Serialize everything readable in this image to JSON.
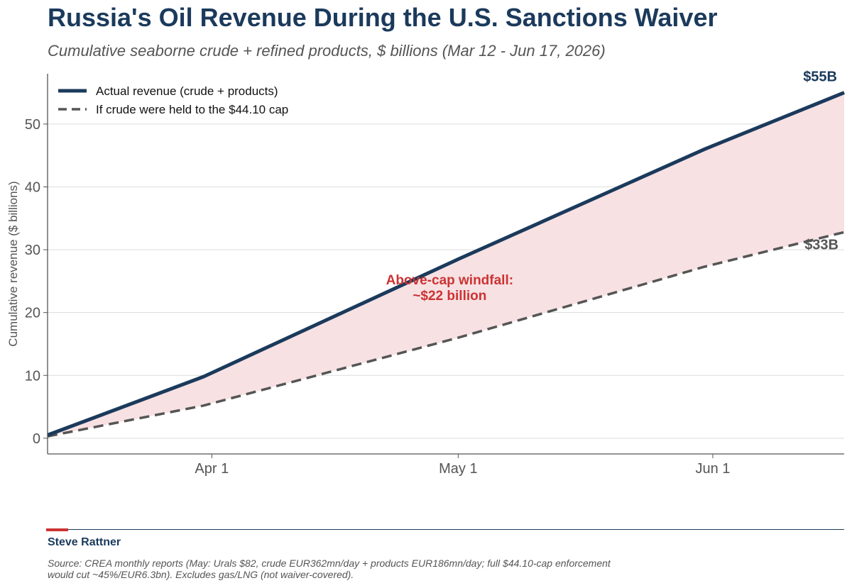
{
  "header": {
    "title": "Russia's Oil Revenue During the U.S. Sanctions Waiver",
    "subtitle": "Cumulative seaborne crude + refined products, $ billions (Mar 12 - Jun 17, 2026)"
  },
  "chart_data": {
    "type": "area",
    "x_axis": {
      "start": "2026-03-12",
      "end": "2026-06-17",
      "ticks": [
        {
          "date": "2026-04-01",
          "label": "Apr 1"
        },
        {
          "date": "2026-05-01",
          "label": "May 1"
        },
        {
          "date": "2026-06-01",
          "label": "Jun 1"
        }
      ]
    },
    "ylabel": "Cumulative revenue ($ billions)",
    "ylim": [
      -2.5,
      58
    ],
    "yticks": [
      0,
      10,
      20,
      30,
      40,
      50
    ],
    "grid": "horizontal",
    "legend_position": "top-left",
    "series": [
      {
        "name": "Actual revenue (crude + products)",
        "color": "#1b3a5c",
        "style": "solid",
        "points": [
          {
            "date": "2026-03-12",
            "value": 0.5
          },
          {
            "date": "2026-03-31",
            "value": 9.8
          },
          {
            "date": "2026-05-01",
            "value": 28.5
          },
          {
            "date": "2026-05-31",
            "value": 46.0
          },
          {
            "date": "2026-06-17",
            "value": 55.0
          }
        ],
        "end_label": "$55B"
      },
      {
        "name": "If crude were held to the $44.10 cap",
        "color": "#555555",
        "style": "dashed",
        "points": [
          {
            "date": "2026-03-12",
            "value": 0.3
          },
          {
            "date": "2026-03-31",
            "value": 5.2
          },
          {
            "date": "2026-05-01",
            "value": 16.0
          },
          {
            "date": "2026-05-31",
            "value": 27.3
          },
          {
            "date": "2026-06-17",
            "value": 32.8
          }
        ],
        "end_label": "$33B"
      }
    ],
    "fill_between": {
      "color": "#f7e1e3"
    },
    "annotation": {
      "line1": "Above-cap windfall:",
      "line2": "~$22 billion",
      "date": "2026-05-01",
      "value": 24.5,
      "color": "#cc3333"
    }
  },
  "footer": {
    "author": "Steve Rattner",
    "source": "Source: CREA monthly reports (May: Urals $82, crude EUR362mn/day + products EUR186mn/day; full $44.10-cap enforcement would cut ~45%/EUR6.3bn). Excludes gas/LNG (not waiver-covered)."
  }
}
